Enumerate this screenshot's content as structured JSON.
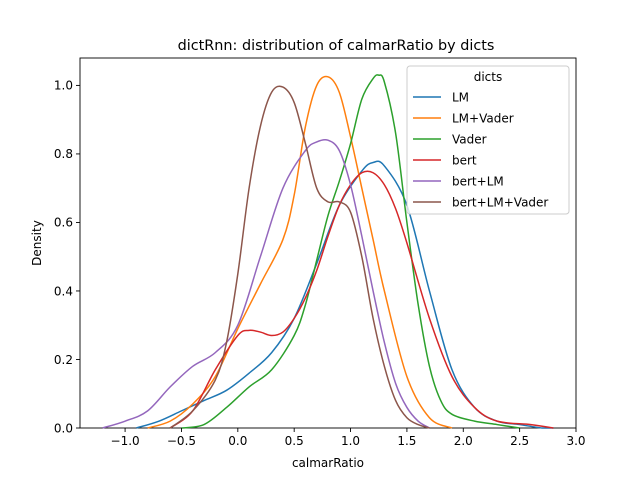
{
  "chart_data": {
    "type": "line",
    "title": "dictRnn: distribution of calmarRatio by dicts",
    "xlabel": "calmarRatio",
    "ylabel": "Density",
    "xlim": [
      -1.4,
      3.0
    ],
    "ylim": [
      0.0,
      1.08
    ],
    "xticks": [
      -1.0,
      -0.5,
      0.0,
      0.5,
      1.0,
      1.5,
      2.0,
      2.5,
      3.0
    ],
    "xtick_labels": [
      "−1.0",
      "−0.5",
      "0.0",
      "0.5",
      "1.0",
      "1.5",
      "2.0",
      "2.5",
      "3.0"
    ],
    "yticks": [
      0.0,
      0.2,
      0.4,
      0.6,
      0.8,
      1.0
    ],
    "ytick_labels": [
      "0.0",
      "0.2",
      "0.4",
      "0.6",
      "0.8",
      "1.0"
    ],
    "grid": false,
    "legend": {
      "title": "dicts",
      "placement": "top-right"
    },
    "series": [
      {
        "name": "LM",
        "color": "#1f77b4",
        "x": [
          -0.9,
          -0.7,
          -0.5,
          -0.3,
          -0.1,
          0.1,
          0.3,
          0.5,
          0.7,
          0.9,
          1.1,
          1.2,
          1.3,
          1.5,
          1.7,
          1.9,
          2.1,
          2.3,
          2.5,
          2.7,
          2.8
        ],
        "y": [
          0.0,
          0.02,
          0.05,
          0.08,
          0.11,
          0.16,
          0.22,
          0.32,
          0.48,
          0.65,
          0.75,
          0.775,
          0.765,
          0.65,
          0.4,
          0.17,
          0.06,
          0.02,
          0.01,
          0.0,
          0.0
        ]
      },
      {
        "name": "LM+Vader",
        "color": "#ff7f0e",
        "x": [
          -0.8,
          -0.6,
          -0.4,
          -0.2,
          0.0,
          0.2,
          0.4,
          0.5,
          0.6,
          0.7,
          0.8,
          0.9,
          1.0,
          1.1,
          1.2,
          1.3,
          1.5,
          1.7,
          1.9
        ],
        "y": [
          0.0,
          0.02,
          0.07,
          0.15,
          0.29,
          0.42,
          0.55,
          0.68,
          0.88,
          1.0,
          1.025,
          0.98,
          0.85,
          0.7,
          0.55,
          0.4,
          0.15,
          0.03,
          0.0
        ]
      },
      {
        "name": "Vader",
        "color": "#2ca02c",
        "x": [
          -0.5,
          -0.3,
          -0.1,
          0.1,
          0.3,
          0.5,
          0.6,
          0.7,
          0.8,
          0.9,
          1.0,
          1.1,
          1.2,
          1.25,
          1.3,
          1.4,
          1.5,
          1.6,
          1.7,
          1.8,
          1.9,
          2.1,
          2.3,
          2.5
        ],
        "y": [
          0.0,
          0.01,
          0.06,
          0.12,
          0.17,
          0.27,
          0.36,
          0.49,
          0.62,
          0.72,
          0.83,
          0.96,
          1.02,
          1.03,
          1.01,
          0.86,
          0.6,
          0.36,
          0.18,
          0.08,
          0.04,
          0.02,
          0.01,
          0.0
        ]
      },
      {
        "name": "bert",
        "color": "#d62728",
        "x": [
          -0.6,
          -0.4,
          -0.2,
          0.0,
          0.1,
          0.2,
          0.3,
          0.4,
          0.5,
          0.6,
          0.7,
          0.8,
          0.9,
          1.0,
          1.1,
          1.2,
          1.3,
          1.4,
          1.5,
          1.7,
          1.9,
          2.1,
          2.3,
          2.6,
          2.8
        ],
        "y": [
          0.0,
          0.05,
          0.17,
          0.27,
          0.285,
          0.28,
          0.27,
          0.28,
          0.32,
          0.38,
          0.46,
          0.56,
          0.65,
          0.71,
          0.745,
          0.745,
          0.71,
          0.64,
          0.54,
          0.32,
          0.15,
          0.06,
          0.02,
          0.01,
          0.0
        ]
      },
      {
        "name": "bert+LM",
        "color": "#9467bd",
        "x": [
          -1.2,
          -1.0,
          -0.8,
          -0.6,
          -0.4,
          -0.2,
          0.0,
          0.2,
          0.4,
          0.6,
          0.7,
          0.8,
          0.9,
          1.0,
          1.1,
          1.2,
          1.3,
          1.4,
          1.5,
          1.6,
          1.7
        ],
        "y": [
          0.0,
          0.02,
          0.05,
          0.12,
          0.18,
          0.22,
          0.3,
          0.5,
          0.7,
          0.81,
          0.835,
          0.84,
          0.81,
          0.71,
          0.56,
          0.4,
          0.25,
          0.13,
          0.06,
          0.02,
          0.0
        ]
      },
      {
        "name": "bert+LM+Vader",
        "color": "#8c564b",
        "x": [
          -0.6,
          -0.4,
          -0.2,
          -0.1,
          0.0,
          0.1,
          0.2,
          0.3,
          0.4,
          0.5,
          0.6,
          0.7,
          0.8,
          0.9,
          1.0,
          1.1,
          1.2,
          1.3,
          1.4,
          1.5,
          1.6,
          1.7
        ],
        "y": [
          0.0,
          0.05,
          0.14,
          0.25,
          0.45,
          0.7,
          0.88,
          0.98,
          0.995,
          0.95,
          0.83,
          0.7,
          0.66,
          0.66,
          0.63,
          0.5,
          0.32,
          0.18,
          0.08,
          0.03,
          0.01,
          0.0
        ]
      }
    ]
  }
}
